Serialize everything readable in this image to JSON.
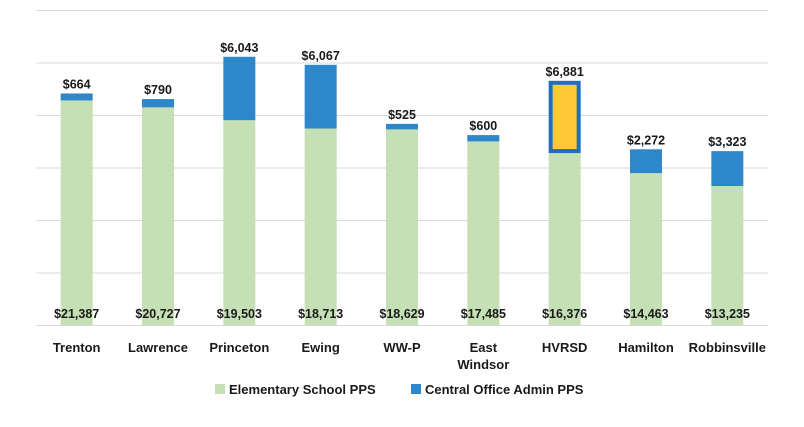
{
  "chart_data": {
    "type": "bar",
    "stacked": true,
    "title": "",
    "xlabel": "",
    "ylabel": "",
    "ylim": [
      0,
      30000
    ],
    "grid": true,
    "legend_position": "bottom",
    "categories": [
      "Trenton",
      "Lawrence",
      "Princeton",
      "Ewing",
      "WW-P",
      "East Windsor",
      "HVRSD",
      "Hamilton",
      "Robbinsville"
    ],
    "category_label_lines": [
      [
        "Trenton"
      ],
      [
        "Lawrence"
      ],
      [
        "Princeton"
      ],
      [
        "Ewing"
      ],
      [
        "WW-P"
      ],
      [
        "East",
        "Windsor"
      ],
      [
        "HVRSD"
      ],
      [
        "Hamilton"
      ],
      [
        "Robbinsville"
      ]
    ],
    "series": [
      {
        "name": "Elementary School PPS",
        "color": "#c5e0b4",
        "values": [
          21387,
          20727,
          19503,
          18713,
          18629,
          17485,
          16376,
          14463,
          13235
        ],
        "labels": [
          "$21,387",
          "$20,727",
          "$19,503",
          "$18,713",
          "$18,629",
          "$17,485",
          "$16,376",
          "$14,463",
          "$13,235"
        ]
      },
      {
        "name": "Central Office Admin PPS",
        "color": "#2e86cb",
        "values": [
          664,
          790,
          6043,
          6067,
          525,
          600,
          6881,
          2272,
          3323
        ],
        "labels": [
          "$664",
          "$790",
          "$6,043",
          "$6,067",
          "$525",
          "$600",
          "$6,881",
          "$2,272",
          "$3,323"
        ]
      }
    ],
    "highlight": {
      "category": "HVRSD",
      "series": "Central Office Admin PPS",
      "fill_color": "#ffc935",
      "border_color": "#1e6fbf"
    }
  }
}
